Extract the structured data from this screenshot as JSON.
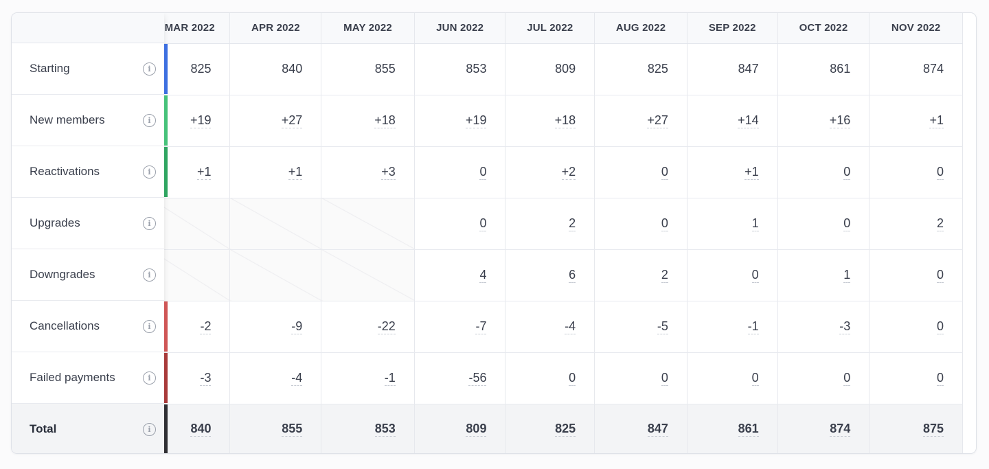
{
  "columns": [
    "MAR 2022",
    "APR 2022",
    "MAY 2022",
    "JUN 2022",
    "JUL 2022",
    "AUG 2022",
    "SEP 2022",
    "OCT 2022",
    "NOV 2022"
  ],
  "rows": [
    {
      "label": "Starting",
      "bar_color": "#3d6fe0",
      "dashed": false,
      "values": [
        "825",
        "840",
        "855",
        "853",
        "809",
        "825",
        "847",
        "861",
        "874"
      ]
    },
    {
      "label": "New members",
      "bar_color": "#46c27a",
      "dashed": true,
      "values": [
        "+19",
        "+27",
        "+18",
        "+19",
        "+18",
        "+27",
        "+14",
        "+16",
        "+1"
      ]
    },
    {
      "label": "Reactivations",
      "bar_color": "#2fa561",
      "dashed": true,
      "values": [
        "+1",
        "+1",
        "+3",
        "0",
        "+2",
        "0",
        "+1",
        "0",
        "0"
      ]
    },
    {
      "label": "Upgrades",
      "bar_color": "",
      "dashed": true,
      "values": [
        "",
        "",
        "",
        "0",
        "2",
        "0",
        "1",
        "0",
        "2"
      ]
    },
    {
      "label": "Downgrades",
      "bar_color": "",
      "dashed": true,
      "values": [
        "",
        "",
        "",
        "4",
        "6",
        "2",
        "0",
        "1",
        "0"
      ]
    },
    {
      "label": "Cancellations",
      "bar_color": "#cf5656",
      "dashed": true,
      "values": [
        "-2",
        "-9",
        "-22",
        "-7",
        "-4",
        "-5",
        "-1",
        "-3",
        "0"
      ]
    },
    {
      "label": "Failed payments",
      "bar_color": "#a83a3a",
      "dashed": true,
      "values": [
        "-3",
        "-4",
        "-1",
        "-56",
        "0",
        "0",
        "0",
        "0",
        "0"
      ]
    }
  ],
  "total": {
    "label": "Total",
    "bar_color": "#2f2f33",
    "values": [
      "840",
      "855",
      "853",
      "809",
      "825",
      "847",
      "861",
      "874",
      "875"
    ]
  },
  "info_icon": "info-circle-icon"
}
